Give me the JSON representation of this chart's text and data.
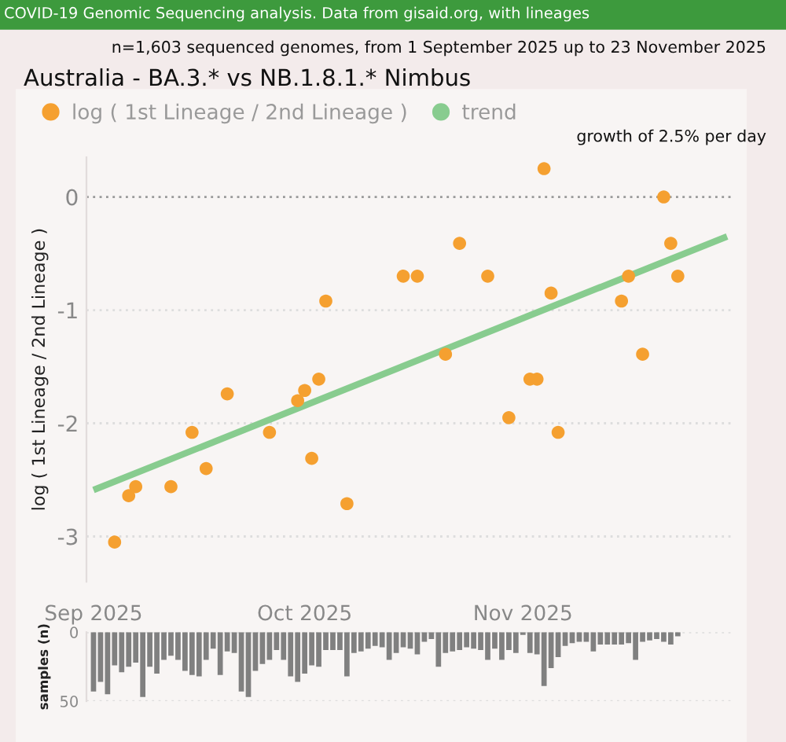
{
  "chart_data": [
    {
      "type": "scatter",
      "title": "Australia - BA.3.* vs NB.1.8.1.* Nimbus",
      "subtitle": "n=1,603 sequenced genomes, from 1 September 2025 up to 23 November 2025",
      "ylabel": "log ( 1st Lineage / 2nd Lineage )",
      "annotations": [
        "COVID-19 Genomic Sequencing analysis. Data from gisaid.org, with lineages",
        "growth of 2.5% per day"
      ],
      "xlim": [
        "2025-08-31",
        "2025-12-01"
      ],
      "ylim": [
        -3.4,
        0.35
      ],
      "yticks": [
        0,
        -1,
        -2,
        -3
      ],
      "tick_labels": "y",
      "grid": "y",
      "legend": "top left",
      "ref_lines": [
        {
          "axis": "y",
          "value": 0,
          "color": "#9a9a9a",
          "line_style": "dotted"
        }
      ],
      "series": [
        {
          "name": "log ( 1st Lineage / 2nd Lineage )",
          "type": "scatter",
          "marker": "circle",
          "color": "#f5a030",
          "x": [
            "2025-09-04",
            "2025-09-06",
            "2025-09-07",
            "2025-09-12",
            "2025-09-15",
            "2025-09-17",
            "2025-09-20",
            "2025-09-26",
            "2025-09-30",
            "2025-10-01",
            "2025-10-02",
            "2025-10-03",
            "2025-10-04",
            "2025-10-07",
            "2025-10-15",
            "2025-10-17",
            "2025-10-21",
            "2025-10-23",
            "2025-10-27",
            "2025-10-30",
            "2025-11-02",
            "2025-11-03",
            "2025-11-04",
            "2025-11-05",
            "2025-11-06",
            "2025-11-15",
            "2025-11-16",
            "2025-11-18",
            "2025-11-21",
            "2025-11-22",
            "2025-11-23"
          ],
          "values": [
            -3.05,
            -2.64,
            -2.56,
            -2.56,
            -2.08,
            -2.4,
            -1.74,
            -2.08,
            -1.8,
            -1.71,
            -2.31,
            -1.61,
            -0.92,
            -2.71,
            -0.7,
            -0.7,
            -1.39,
            -0.41,
            -0.7,
            -1.95,
            -1.61,
            -1.61,
            0.25,
            -0.85,
            -2.08,
            -0.92,
            -0.7,
            -1.39,
            0.0,
            -0.41,
            -0.7
          ]
        },
        {
          "name": "trend",
          "type": "line",
          "color": "#88cc8f",
          "x": [
            "2025-09-01",
            "2025-11-30"
          ],
          "values": [
            -2.59,
            -0.35
          ]
        }
      ]
    },
    {
      "type": "bar",
      "ylabel": "samples (n)",
      "color": "#808080",
      "xlim": [
        "2025-08-31",
        "2025-12-01"
      ],
      "ylim": [
        50,
        0
      ],
      "yticks": [
        0,
        50
      ],
      "grid": "y",
      "xticks": [
        {
          "value": "2025-09-01",
          "label": "Sep 2025"
        },
        {
          "value": "2025-10-01",
          "label": "Oct 2025"
        },
        {
          "value": "2025-11-01",
          "label": "Nov 2025"
        }
      ],
      "x": [
        "2025-09-01",
        "2025-09-02",
        "2025-09-03",
        "2025-09-04",
        "2025-09-05",
        "2025-09-06",
        "2025-09-07",
        "2025-09-08",
        "2025-09-09",
        "2025-09-10",
        "2025-09-11",
        "2025-09-12",
        "2025-09-13",
        "2025-09-14",
        "2025-09-15",
        "2025-09-16",
        "2025-09-17",
        "2025-09-18",
        "2025-09-19",
        "2025-09-20",
        "2025-09-21",
        "2025-09-22",
        "2025-09-23",
        "2025-09-24",
        "2025-09-25",
        "2025-09-26",
        "2025-09-27",
        "2025-09-28",
        "2025-09-29",
        "2025-09-30",
        "2025-10-01",
        "2025-10-02",
        "2025-10-03",
        "2025-10-04",
        "2025-10-05",
        "2025-10-06",
        "2025-10-07",
        "2025-10-08",
        "2025-10-09",
        "2025-10-10",
        "2025-10-11",
        "2025-10-12",
        "2025-10-13",
        "2025-10-14",
        "2025-10-15",
        "2025-10-16",
        "2025-10-17",
        "2025-10-18",
        "2025-10-19",
        "2025-10-20",
        "2025-10-21",
        "2025-10-22",
        "2025-10-23",
        "2025-10-24",
        "2025-10-25",
        "2025-10-26",
        "2025-10-27",
        "2025-10-28",
        "2025-10-29",
        "2025-10-30",
        "2025-10-31",
        "2025-11-01",
        "2025-11-02",
        "2025-11-03",
        "2025-11-04",
        "2025-11-05",
        "2025-11-06",
        "2025-11-07",
        "2025-11-08",
        "2025-11-09",
        "2025-11-10",
        "2025-11-11",
        "2025-11-12",
        "2025-11-13",
        "2025-11-14",
        "2025-11-15",
        "2025-11-16",
        "2025-11-17",
        "2025-11-18",
        "2025-11-19",
        "2025-11-20",
        "2025-11-21",
        "2025-11-22",
        "2025-11-23"
      ],
      "values": [
        43,
        36,
        45,
        24,
        29,
        25,
        22,
        47,
        25,
        30,
        20,
        17,
        20,
        28,
        31,
        32,
        20,
        12,
        31,
        14,
        15,
        43,
        47,
        28,
        23,
        20,
        13,
        20,
        32,
        36,
        30,
        24,
        25,
        13,
        13,
        13,
        32,
        15,
        14,
        12,
        10,
        11,
        20,
        15,
        11,
        12,
        16,
        7,
        5,
        25,
        15,
        14,
        13,
        11,
        12,
        13,
        20,
        12,
        20,
        13,
        15,
        2,
        15,
        16,
        39,
        26,
        18,
        10,
        8,
        7,
        7,
        14,
        9,
        9,
        9,
        9,
        8,
        20,
        7,
        6,
        5,
        7,
        9,
        3
      ]
    }
  ]
}
